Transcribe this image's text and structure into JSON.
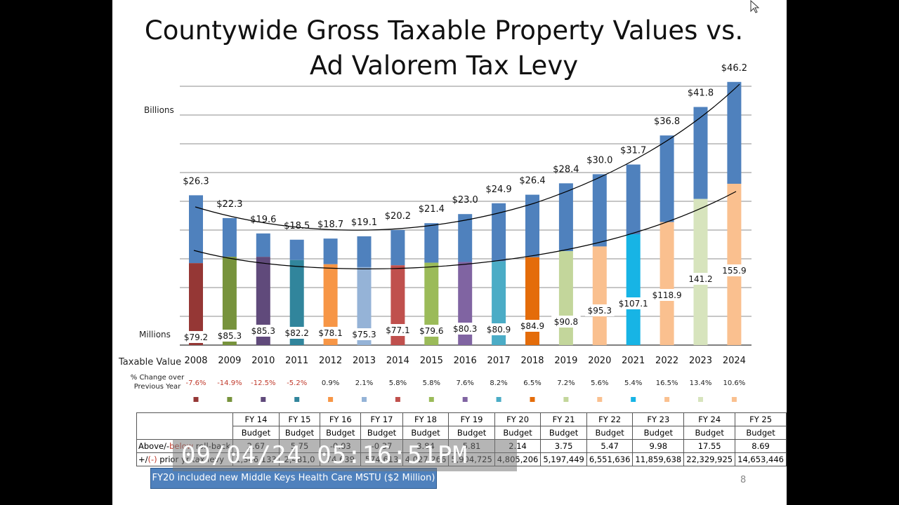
{
  "title_line1": "Countywide Gross Taxable Property Values vs.",
  "title_line2": "Ad Valorem Tax Levy",
  "axis_billions": "Billions",
  "axis_millions": "Millions",
  "xaxis_label": "Taxable Value",
  "pct_label_1": "% Change over",
  "pct_label_2": "Previous Year",
  "chart_data": {
    "type": "bar",
    "categories": [
      "2008",
      "2009",
      "2010",
      "2011",
      "2012",
      "2013",
      "2014",
      "2015",
      "2016",
      "2017",
      "2018",
      "2019",
      "2020",
      "2021",
      "2022",
      "2023",
      "2024"
    ],
    "series": [
      {
        "name": "Billions",
        "values": [
          26.3,
          22.3,
          19.6,
          18.5,
          18.7,
          19.1,
          20.2,
          21.4,
          23.0,
          24.9,
          26.4,
          28.4,
          30.0,
          31.7,
          36.8,
          41.8,
          46.2
        ]
      },
      {
        "name": "Millions",
        "values": [
          79.2,
          85.3,
          85.3,
          82.2,
          78.1,
          75.3,
          77.1,
          79.6,
          80.3,
          80.9,
          84.9,
          90.8,
          95.3,
          107.1,
          118.9,
          141.2,
          155.9
        ]
      }
    ],
    "value_labels_billions": [
      "$26.3",
      "$22.3",
      "$19.6",
      "$18.5",
      "$18.7",
      "$19.1",
      "$20.2",
      "$21.4",
      "$23.0",
      "$24.9",
      "$26.4",
      "$28.4",
      "$30.0",
      "$31.7",
      "$36.8",
      "$41.8",
      "$46.2"
    ],
    "value_labels_millions": [
      "$79.2",
      "$85.3",
      "$85.3",
      "$82.2",
      "$78.1",
      "$75.3",
      "$77.1",
      "$79.6",
      "$80.3",
      "$80.9",
      "$84.9",
      "$90.8",
      "$95.3",
      "$107.1",
      "$118.9",
      "141.2",
      "155.9"
    ],
    "pct_change": [
      "-7.6%",
      "-14.9%",
      "-12.5%",
      "-5.2%",
      "0.9%",
      "2.1%",
      "5.8%",
      "5.8%",
      "7.6%",
      "8.2%",
      "6.5%",
      "7.2%",
      "5.6%",
      "5.4%",
      "16.5%",
      "13.4%",
      "10.6%"
    ],
    "bar_colors": [
      "#953735",
      "#77933c",
      "#604a7b",
      "#31859c",
      "#f79646",
      "#95b3d7",
      "#c0504d",
      "#9bbb59",
      "#8064a2",
      "#4bacc6",
      "#e46c0a",
      "#c3d69b",
      "#fac08f",
      "#17b4e5",
      "#fac08f",
      "#d7e4bd",
      "#fac08f"
    ],
    "billions_color": "#4f81bd",
    "ylim_billions": [
      0,
      46.2
    ],
    "ylim_millions": [
      0,
      155.9
    ],
    "grid": true,
    "trendlines": true
  },
  "table": {
    "columns": [
      {
        "fy": "FY 14",
        "sub": "Budget",
        "above": "2.67",
        "prior": "1,346,133"
      },
      {
        "fy": "FY 15",
        "sub": "Budget",
        "above": "5.75",
        "prior": "2,481,0"
      },
      {
        "fy": "FY 16",
        "sub": "Budget",
        "above": "-0.03",
        "prior": "74,639"
      },
      {
        "fy": "FY 17",
        "sub": "Budget",
        "above": "-0.37",
        "prior": "574,613"
      },
      {
        "fy": "FY 18",
        "sub": "Budget",
        "above": "3.84",
        "prior": "4,027,266"
      },
      {
        "fy": "FY 19",
        "sub": "Budget",
        "above": "5.81",
        "prior": "5,904,725"
      },
      {
        "fy": "FY 20",
        "sub": "Budget",
        "above": "2.14",
        "prior": "4,805,206"
      },
      {
        "fy": "FY 21",
        "sub": "Budget",
        "above": "3.75",
        "prior": "5,197,449"
      },
      {
        "fy": "FY 22",
        "sub": "Budget",
        "above": "5.47",
        "prior": "6,551,636"
      },
      {
        "fy": "FY 23",
        "sub": "Budget",
        "above": "9.98",
        "prior": "11,859,638"
      },
      {
        "fy": "FY 24",
        "sub": "Budget",
        "above": "17.55",
        "prior": "22,329,925"
      },
      {
        "fy": "FY 25",
        "sub": "Budget",
        "above": "8.69",
        "prior": "14,653,446"
      }
    ],
    "row1_label_a": "Above/-",
    "row1_label_b": "below",
    "row1_label_c": " roll-back",
    "row2_label_a": "+/",
    "row2_label_b": "(-)",
    "row2_label_c": " prior yr tax levy"
  },
  "note": "FY20 included new Middle Keys Health Care MSTU ($2 Million)",
  "page_number": "8",
  "timestamp": "09/04/24 05:16:51PM"
}
